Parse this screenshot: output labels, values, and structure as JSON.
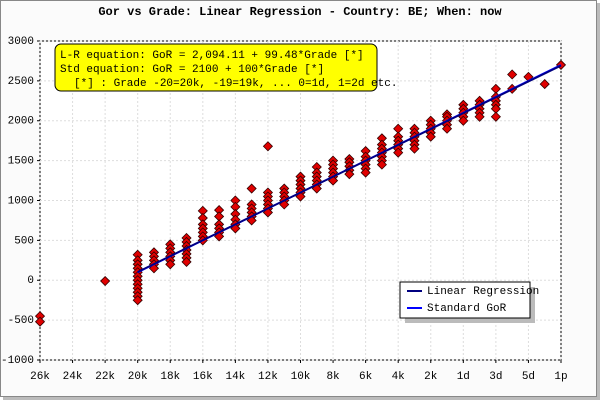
{
  "chart_data": {
    "type": "scatter",
    "title": "Gor vs Grade: Linear Regression - Country: BE; When: now",
    "annotations": [
      "L-R equation: GoR = 2,094.11 + 99.48*Grade    [*]",
      "Std equation: GoR = 2100 + 100*Grade    [*]",
      "[*] : Grade -20=20k, -19=19k, ... 0=1d, 1=2d etc."
    ],
    "color": "#e00000",
    "x": [
      -26,
      -26,
      -22,
      -20,
      -20,
      -20,
      -20,
      -20,
      -20,
      -20,
      -20,
      -20,
      -20,
      -20,
      -20,
      -19,
      -19,
      -19,
      -19,
      -19,
      -18,
      -18,
      -18,
      -18,
      -18,
      -18,
      -17,
      -17,
      -17,
      -17,
      -17,
      -17,
      -17,
      -16,
      -16,
      -16,
      -16,
      -16,
      -16,
      -16,
      -15,
      -15,
      -15,
      -15,
      -15,
      -15,
      -14,
      -14,
      -14,
      -14,
      -14,
      -14,
      -13,
      -13,
      -13,
      -13,
      -13,
      -13,
      -12,
      -12,
      -12,
      -12,
      -12,
      -12,
      -12,
      -11,
      -11,
      -11,
      -11,
      -11,
      -10,
      -10,
      -10,
      -10,
      -10,
      -10,
      -9,
      -9,
      -9,
      -9,
      -9,
      -9,
      -8,
      -8,
      -8,
      -8,
      -8,
      -8,
      -7,
      -7,
      -7,
      -7,
      -7,
      -6,
      -6,
      -6,
      -6,
      -6,
      -6,
      -5,
      -5,
      -5,
      -5,
      -5,
      -5,
      -5,
      -4,
      -4,
      -4,
      -4,
      -4,
      -4,
      -3,
      -3,
      -3,
      -3,
      -3,
      -3,
      -2,
      -2,
      -2,
      -2,
      -2,
      -1,
      -1,
      -1,
      -1,
      -1,
      0,
      0,
      0,
      0,
      0,
      1,
      1,
      1,
      1,
      1,
      2,
      2,
      2,
      2,
      2,
      2,
      3,
      3,
      4,
      5,
      6
    ],
    "values": [
      -450,
      -520,
      -10,
      320,
      250,
      200,
      150,
      100,
      50,
      0,
      -50,
      -100,
      -150,
      -200,
      -250,
      350,
      300,
      250,
      200,
      150,
      450,
      400,
      350,
      300,
      250,
      200,
      530,
      480,
      430,
      380,
      330,
      280,
      230,
      870,
      780,
      700,
      650,
      600,
      550,
      500,
      880,
      800,
      700,
      650,
      600,
      550,
      1000,
      920,
      830,
      760,
      700,
      650,
      1150,
      950,
      900,
      850,
      800,
      750,
      1680,
      1100,
      1050,
      1000,
      950,
      900,
      850,
      1150,
      1100,
      1050,
      1000,
      950,
      1300,
      1250,
      1200,
      1150,
      1100,
      1050,
      1420,
      1350,
      1300,
      1250,
      1200,
      1150,
      1500,
      1450,
      1400,
      1350,
      1300,
      1250,
      1520,
      1480,
      1430,
      1380,
      1330,
      1620,
      1550,
      1500,
      1450,
      1400,
      1350,
      1780,
      1700,
      1650,
      1600,
      1550,
      1500,
      1450,
      1900,
      1800,
      1750,
      1700,
      1650,
      1600,
      1900,
      1850,
      1800,
      1750,
      1700,
      1650,
      2000,
      1950,
      1900,
      1850,
      1800,
      2080,
      2050,
      2000,
      1950,
      1900,
      2200,
      2150,
      2100,
      2050,
      2000,
      2250,
      2200,
      2150,
      2100,
      2050,
      2400,
      2300,
      2250,
      2200,
      2150,
      2050,
      2580,
      2400,
      2550,
      2460,
      2700
    ],
    "series": [
      {
        "name": "Linear Regression",
        "color": "#000080",
        "x": [
          -20,
          6
        ],
        "values": [
          105,
          2691
        ]
      },
      {
        "name": "Standard GoR",
        "color": "#0000ff",
        "x": [
          -20,
          6
        ],
        "values": [
          100,
          2700
        ]
      }
    ],
    "xlim": [
      -26,
      6
    ],
    "xticks": [
      {
        "value": -26,
        "label": "26k"
      },
      {
        "value": -24,
        "label": "24k"
      },
      {
        "value": -22,
        "label": "22k"
      },
      {
        "value": -20,
        "label": "20k"
      },
      {
        "value": -18,
        "label": "18k"
      },
      {
        "value": -16,
        "label": "16k"
      },
      {
        "value": -14,
        "label": "14k"
      },
      {
        "value": -12,
        "label": "12k"
      },
      {
        "value": -10,
        "label": "10k"
      },
      {
        "value": -8,
        "label": "8k"
      },
      {
        "value": -6,
        "label": "6k"
      },
      {
        "value": -4,
        "label": "4k"
      },
      {
        "value": -2,
        "label": "2k"
      },
      {
        "value": 0,
        "label": "1d"
      },
      {
        "value": 2,
        "label": "3d"
      },
      {
        "value": 4,
        "label": "5d"
      },
      {
        "value": 6,
        "label": "1p"
      }
    ],
    "ylim": [
      -1000,
      3000
    ],
    "yticks": [
      -1000,
      -500,
      0,
      500,
      1000,
      1500,
      2000,
      2500,
      3000
    ],
    "grid": true,
    "legend": "lower-right"
  }
}
